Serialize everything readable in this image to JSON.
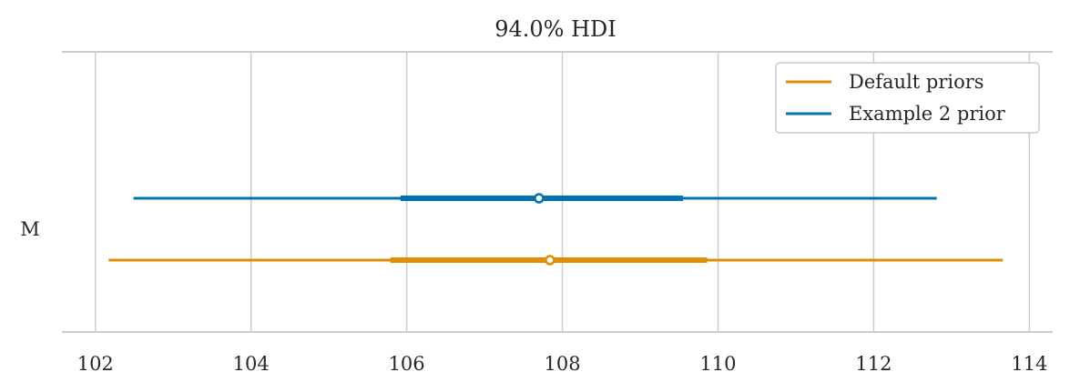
{
  "chart_data": {
    "type": "forest",
    "title": "94.0% HDI",
    "xlabel": "",
    "ylabel": "",
    "xlim": [
      101.57,
      114.3
    ],
    "x_ticks": [
      102,
      104,
      106,
      108,
      110,
      112,
      114
    ],
    "x_tick_labels": [
      "102",
      "104",
      "106",
      "108",
      "110",
      "112",
      "114"
    ],
    "grid": "vertical",
    "legend_position": "top-right",
    "rows": [
      {
        "label": "M"
      }
    ],
    "series": [
      {
        "name": "Example 2 prior",
        "color": "#0173b2",
        "row": "M",
        "hdi_94": [
          102.49,
          112.81
        ],
        "iqr": [
          105.92,
          109.55
        ],
        "point_estimate": 107.7
      },
      {
        "name": "Default priors",
        "color": "#de8f05",
        "row": "M",
        "hdi_94": [
          102.17,
          113.66
        ],
        "iqr": [
          105.79,
          109.86
        ],
        "point_estimate": 107.84
      }
    ],
    "legend": [
      {
        "name": "Default priors",
        "color": "#de8f05"
      },
      {
        "name": "Example 2 prior",
        "color": "#0173b2"
      }
    ]
  },
  "colors": {
    "grid": "#cccccc",
    "axis": "#cccccc",
    "text": "#262626"
  }
}
